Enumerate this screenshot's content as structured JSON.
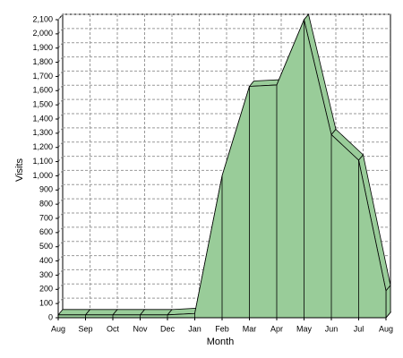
{
  "chart_data": {
    "type": "area",
    "x_label": "Month",
    "y_label": "Visits",
    "categories": [
      "Aug",
      "Sep",
      "Oct",
      "Nov",
      "Dec",
      "Jan",
      "Feb",
      "Mar",
      "Apr",
      "May",
      "Jun",
      "Jul",
      "Aug"
    ],
    "series": [
      {
        "name": "Visits",
        "color": "#99cc99",
        "values": [
          20,
          20,
          20,
          20,
          20,
          30,
          1000,
          1630,
          1640,
          2100,
          1290,
          1110,
          190
        ]
      }
    ],
    "ylim": [
      0,
      2100
    ],
    "yticks": [
      0,
      100,
      200,
      300,
      400,
      500,
      600,
      700,
      800,
      900,
      {
        "value": 1000,
        "label": "1,000"
      },
      {
        "value": 1100,
        "label": "1,100"
      },
      {
        "value": 1200,
        "label": "1,200"
      },
      {
        "value": 1300,
        "label": "1,300"
      },
      {
        "value": 1400,
        "label": "1,400"
      },
      {
        "value": 1500,
        "label": "1,500"
      },
      {
        "value": 1600,
        "label": "1,600"
      },
      {
        "value": 1700,
        "label": "1,700"
      },
      {
        "value": 1800,
        "label": "1,800"
      },
      {
        "value": 1900,
        "label": "1,900"
      },
      {
        "value": 2000,
        "label": "2,000"
      },
      {
        "value": 2100,
        "label": "2,100"
      }
    ],
    "grid": true
  }
}
